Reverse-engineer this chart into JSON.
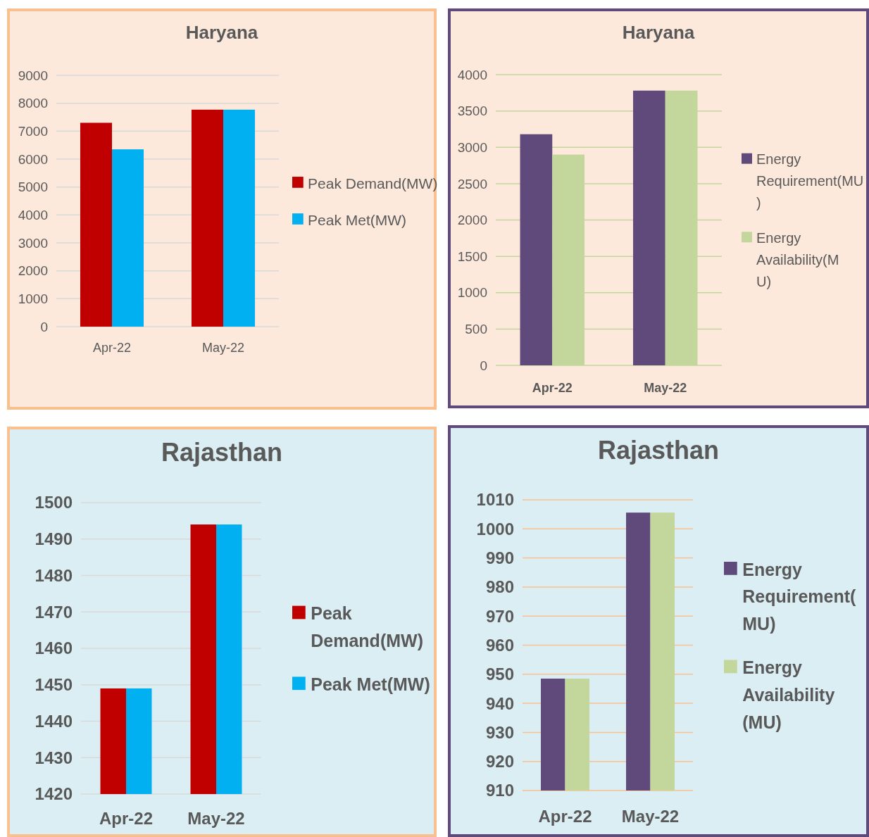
{
  "chart_data": [
    {
      "type": "bar",
      "title": "Haryana",
      "categories": [
        "Apr-22",
        "May-22"
      ],
      "series": [
        {
          "name": "Peak Demand(MW)",
          "color": "#c00000",
          "values": [
            7300,
            7770
          ]
        },
        {
          "name": "Peak Met(MW)",
          "color": "#00b0f0",
          "values": [
            6350,
            7770
          ]
        }
      ],
      "ylim": [
        0,
        9000
      ],
      "yticks": [
        0,
        1000,
        2000,
        3000,
        4000,
        5000,
        6000,
        7000,
        8000,
        9000
      ],
      "grid": "y",
      "legend": "right"
    },
    {
      "type": "bar",
      "title": "Haryana",
      "categories": [
        "Apr-22",
        "May-22"
      ],
      "series": [
        {
          "name": "Energy Requirement(MU)",
          "color": "#604a7b",
          "values": [
            3180,
            3780
          ]
        },
        {
          "name": "Energy Availability(MU)",
          "color": "#c3d69b",
          "values": [
            2900,
            3780
          ]
        }
      ],
      "ylim": [
        0,
        4000
      ],
      "yticks": [
        0,
        500,
        1000,
        1500,
        2000,
        2500,
        3000,
        3500,
        4000
      ],
      "grid": "y",
      "legend": "right"
    },
    {
      "type": "bar",
      "title": "Rajasthan",
      "categories": [
        "Apr-22",
        "May-22"
      ],
      "series": [
        {
          "name": "Peak Demand(MW)",
          "color": "#c00000",
          "values": [
            1449,
            1494
          ]
        },
        {
          "name": "Peak Met(MW)",
          "color": "#00b0f0",
          "values": [
            1449,
            1494
          ]
        }
      ],
      "ylim": [
        1420,
        1500
      ],
      "yticks": [
        1420,
        1430,
        1440,
        1450,
        1460,
        1470,
        1480,
        1490,
        1500
      ],
      "grid": "y",
      "legend": "right"
    },
    {
      "type": "bar",
      "title": "Rajasthan",
      "categories": [
        "Apr-22",
        "May-22"
      ],
      "series": [
        {
          "name": "Energy Requirement(MU)",
          "color": "#604a7b",
          "values": [
            948.5,
            1005.6
          ]
        },
        {
          "name": "Energy Availability(MU)",
          "color": "#c3d69b",
          "values": [
            948.5,
            1005.6
          ]
        }
      ],
      "ylim": [
        910,
        1010
      ],
      "yticks": [
        910,
        920,
        930,
        940,
        950,
        960,
        970,
        980,
        990,
        1000,
        1010
      ],
      "grid": "y",
      "legend": "right"
    }
  ]
}
